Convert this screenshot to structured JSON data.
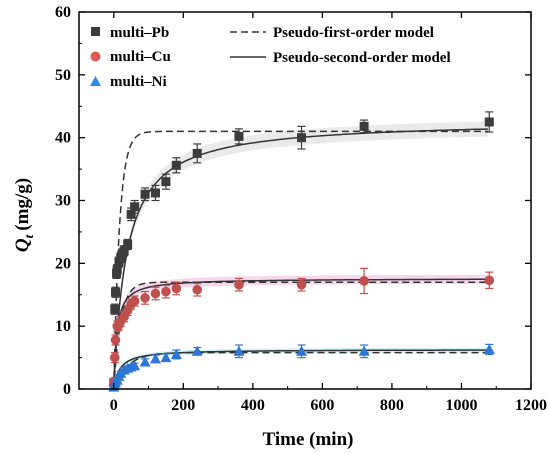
{
  "chart_data": {
    "type": "scatter",
    "xlabel": "Time (min)",
    "ylabel_main": "Q",
    "ylabel_sub": "t",
    "ylabel_unit": "(mg/g)",
    "xlim": [
      -100,
      1200
    ],
    "ylim": [
      0,
      60
    ],
    "xticks": [
      0,
      200,
      400,
      600,
      800,
      1000,
      1200
    ],
    "yticks": [
      0,
      10,
      20,
      30,
      40,
      50,
      60
    ],
    "grid": false,
    "legend_placement": "top",
    "legend": {
      "pb_label": "multi–Pb",
      "cu_label": "multi–Cu",
      "ni_label": "multi–Ni",
      "pfo_label": "Pseudo-first-order model",
      "pso_label": "Pseudo-second-order model"
    },
    "series": [
      {
        "name": "multi–Pb",
        "color": "#3c3c3c",
        "marker": "square",
        "band_color": "#e6e6e6",
        "points": [
          {
            "x": 0,
            "y": 1.0,
            "err": 0.3
          },
          {
            "x": 3,
            "y": 12.7,
            "err": 0.8
          },
          {
            "x": 5,
            "y": 15.4,
            "err": 0.8
          },
          {
            "x": 8,
            "y": 18.4,
            "err": 0.8
          },
          {
            "x": 10,
            "y": 19.0,
            "err": 0.8
          },
          {
            "x": 15,
            "y": 20.2,
            "err": 0.8
          },
          {
            "x": 20,
            "y": 20.9,
            "err": 0.8
          },
          {
            "x": 25,
            "y": 21.5,
            "err": 0.8
          },
          {
            "x": 30,
            "y": 22.0,
            "err": 0.8
          },
          {
            "x": 40,
            "y": 23.0,
            "err": 0.8
          },
          {
            "x": 50,
            "y": 27.8,
            "err": 1.0
          },
          {
            "x": 60,
            "y": 29.0,
            "err": 1.0
          },
          {
            "x": 90,
            "y": 31.0,
            "err": 1.0
          },
          {
            "x": 120,
            "y": 31.2,
            "err": 1.2
          },
          {
            "x": 150,
            "y": 33.0,
            "err": 1.2
          },
          {
            "x": 180,
            "y": 35.6,
            "err": 1.2
          },
          {
            "x": 240,
            "y": 37.5,
            "err": 1.5
          },
          {
            "x": 360,
            "y": 40.2,
            "err": 1.2
          },
          {
            "x": 540,
            "y": 40.0,
            "err": 1.8
          },
          {
            "x": 720,
            "y": 41.8,
            "err": 1.0
          },
          {
            "x": 1080,
            "y": 42.5,
            "err": 1.6
          }
        ],
        "pfo": {
          "qe": 41.0,
          "k1": 0.06
        },
        "pso": {
          "qe": 42.8,
          "k2": 0.00063
        }
      },
      {
        "name": "multi–Cu",
        "color": "#c0504d",
        "marker": "circle",
        "band_color": "#f7d0ea",
        "points": [
          {
            "x": 0,
            "y": 1.2,
            "err": 0.3
          },
          {
            "x": 3,
            "y": 5.0,
            "err": 0.8
          },
          {
            "x": 5,
            "y": 7.8,
            "err": 0.8
          },
          {
            "x": 10,
            "y": 10.0,
            "err": 0.8
          },
          {
            "x": 15,
            "y": 10.2,
            "err": 0.8
          },
          {
            "x": 20,
            "y": 10.8,
            "err": 0.8
          },
          {
            "x": 30,
            "y": 11.5,
            "err": 0.8
          },
          {
            "x": 40,
            "y": 12.5,
            "err": 0.8
          },
          {
            "x": 50,
            "y": 13.5,
            "err": 0.8
          },
          {
            "x": 60,
            "y": 14.0,
            "err": 0.8
          },
          {
            "x": 90,
            "y": 14.5,
            "err": 1.0
          },
          {
            "x": 120,
            "y": 15.2,
            "err": 1.0
          },
          {
            "x": 150,
            "y": 15.5,
            "err": 1.0
          },
          {
            "x": 180,
            "y": 16.0,
            "err": 1.0
          },
          {
            "x": 240,
            "y": 15.8,
            "err": 1.0
          },
          {
            "x": 360,
            "y": 16.6,
            "err": 1.0
          },
          {
            "x": 540,
            "y": 16.6,
            "err": 1.0
          },
          {
            "x": 720,
            "y": 17.2,
            "err": 2.0
          },
          {
            "x": 1080,
            "y": 17.3,
            "err": 1.3
          }
        ],
        "pfo": {
          "qe": 17.0,
          "k1": 0.05
        },
        "pso": {
          "qe": 17.6,
          "k2": 0.0065
        }
      },
      {
        "name": "multi–Ni",
        "color": "#2e75d6",
        "marker": "triangle",
        "band_color": "#c8f2f6",
        "points": [
          {
            "x": 0,
            "y": 0.3,
            "err": 0.2
          },
          {
            "x": 3,
            "y": 0.6,
            "err": 0.2
          },
          {
            "x": 5,
            "y": 1.0,
            "err": 0.3
          },
          {
            "x": 10,
            "y": 1.4,
            "err": 0.3
          },
          {
            "x": 15,
            "y": 2.0,
            "err": 0.3
          },
          {
            "x": 20,
            "y": 2.5,
            "err": 0.3
          },
          {
            "x": 30,
            "y": 3.0,
            "err": 0.4
          },
          {
            "x": 40,
            "y": 3.3,
            "err": 0.4
          },
          {
            "x": 50,
            "y": 3.5,
            "err": 0.4
          },
          {
            "x": 60,
            "y": 3.7,
            "err": 0.4
          },
          {
            "x": 90,
            "y": 4.3,
            "err": 0.5
          },
          {
            "x": 120,
            "y": 4.8,
            "err": 0.6
          },
          {
            "x": 150,
            "y": 5.0,
            "err": 0.6
          },
          {
            "x": 180,
            "y": 5.5,
            "err": 0.7
          },
          {
            "x": 240,
            "y": 6.0,
            "err": 0.6
          },
          {
            "x": 360,
            "y": 6.0,
            "err": 1.0
          },
          {
            "x": 540,
            "y": 6.0,
            "err": 1.0
          },
          {
            "x": 720,
            "y": 6.0,
            "err": 1.0
          },
          {
            "x": 1080,
            "y": 6.3,
            "err": 0.8
          }
        ],
        "pfo": {
          "qe": 5.8,
          "k1": 0.025
        },
        "pso": {
          "qe": 6.3,
          "k2": 0.009
        }
      }
    ]
  }
}
